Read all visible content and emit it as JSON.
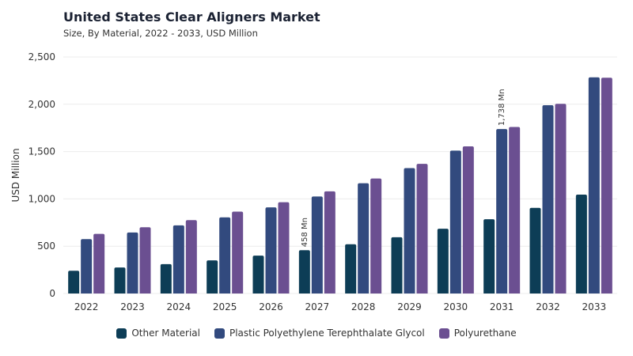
{
  "header": {
    "title": "United States Clear Aligners Market",
    "subtitle": "Size, By Material, 2022 - 2033, USD Million"
  },
  "chart_data": {
    "type": "bar",
    "title": "United States Clear Aligners Market",
    "subtitle": "Size, By Material, 2022 - 2033, USD Million",
    "xlabel": "",
    "ylabel": "USD Million",
    "ylim": [
      0,
      2500
    ],
    "yticks": [
      0,
      500,
      1000,
      1500,
      2000,
      2500
    ],
    "ytick_labels": [
      "0",
      "500",
      "1,000",
      "1,500",
      "2,000",
      "2,500"
    ],
    "grid": true,
    "legend_position": "bottom",
    "categories": [
      "2022",
      "2023",
      "2024",
      "2025",
      "2026",
      "2027",
      "2028",
      "2029",
      "2030",
      "2031",
      "2032",
      "2033"
    ],
    "series": [
      {
        "name": "Other Material",
        "color": "#0d3d56",
        "values": [
          240,
          275,
          310,
          350,
          400,
          458,
          520,
          595,
          685,
          785,
          905,
          1045
        ]
      },
      {
        "name": "Plastic Polyethylene Terephthalate Glycol",
        "color": "#324a7e",
        "values": [
          575,
          645,
          720,
          805,
          910,
          1025,
          1165,
          1325,
          1510,
          1738,
          1990,
          2285
        ]
      },
      {
        "name": "Polyurethane",
        "color": "#6b4f91",
        "values": [
          630,
          700,
          775,
          865,
          965,
          1080,
          1215,
          1370,
          1555,
          1760,
          2005,
          2280
        ]
      }
    ],
    "annotations": [
      {
        "text": "458 Mn",
        "category": "2027",
        "series": 0
      },
      {
        "text": "1,738 Mn",
        "category": "2031",
        "series": 1
      }
    ]
  }
}
